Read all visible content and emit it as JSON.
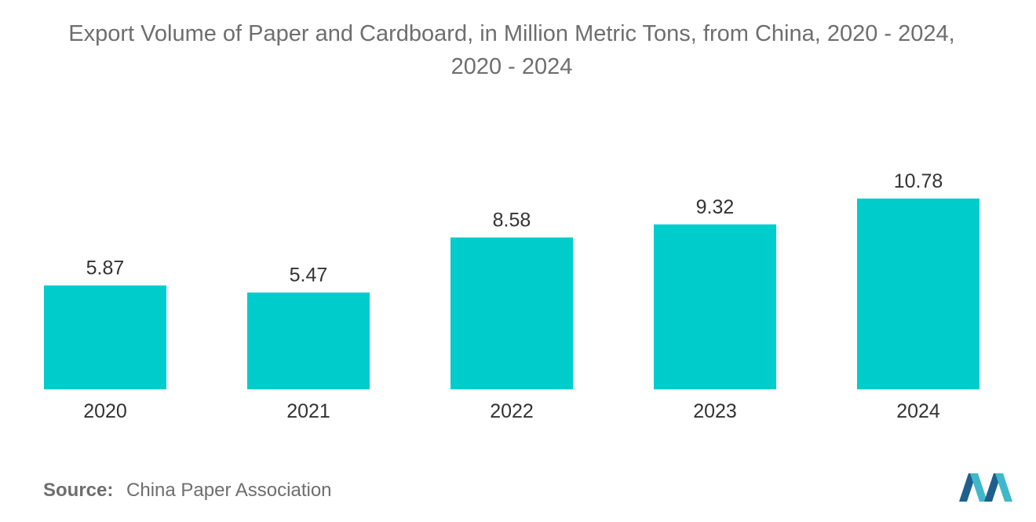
{
  "chart_data": {
    "type": "bar",
    "title_lines": [
      "Export Volume of Paper and Cardboard, in Million Metric Tons, from China, 2020 - 2024,",
      "2020 - 2024"
    ],
    "categories": [
      "2020",
      "2021",
      "2022",
      "2023",
      "2024"
    ],
    "values": [
      5.87,
      5.47,
      8.58,
      9.32,
      10.78
    ],
    "value_labels": [
      "5.87",
      "5.47",
      "8.58",
      "9.32",
      "10.78"
    ],
    "xlabel": "",
    "ylabel": "",
    "ylim": [
      0,
      11
    ],
    "grid": false,
    "bar_color": "#00cccc"
  },
  "source": {
    "label": "Source:",
    "text": "China Paper Association"
  },
  "colors": {
    "text": "#6e6e6e",
    "value_text": "#333333",
    "logo_dark": "#1f5f8b",
    "logo_light": "#3fb8c9"
  }
}
